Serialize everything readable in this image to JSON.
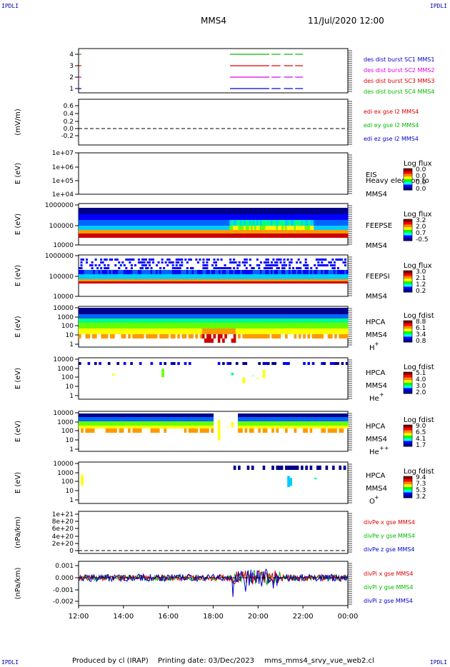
{
  "corners": {
    "tl": "IPDLI",
    "tr": "IPDLI",
    "bl": "IPDLI",
    "br": "IPDLI"
  },
  "header": {
    "mission": "MMS4",
    "datetime": "11/Jul/2020 12:00"
  },
  "footer": {
    "produced": "Produced by cl (IRAP)",
    "printing": "Printing date: 03/Dec/2023",
    "file": "mms_mms4_srvy_vue_web2.cl"
  },
  "colors": {
    "blue": "#0000cc",
    "red": "#dd0000",
    "green": "#00bb00",
    "magenta": "#dd00dd"
  },
  "chart_data": [
    {
      "type": "line",
      "x_axis": {
        "ticks": [
          "12:00",
          "14:00",
          "16:00",
          "18:00",
          "20:00",
          "22:00",
          "00:00"
        ],
        "range_hours": [
          12,
          24
        ]
      },
      "panels": [
        {
          "id": "burst",
          "type": "line",
          "yticks": [
            "4",
            "3",
            "2",
            "1"
          ],
          "ylim": [
            0.5,
            4.5
          ],
          "series": [
            {
              "name": "des dist burst SC1 MMS1",
              "color": "#0000cc",
              "y": 1
            },
            {
              "name": "des dist burst SC2 MMS2",
              "color": "#dd00dd",
              "y": 2
            },
            {
              "name": "des dist burst SC3 MMS3",
              "color": "#dd0000",
              "y": 3
            },
            {
              "name": "des dist burst SC4 MMS4",
              "color": "#00bb00",
              "y": 4
            }
          ],
          "segments_hours": [
            [
              18.75,
              20.5
            ],
            [
              20.6,
              21.0
            ],
            [
              21.15,
              21.55
            ],
            [
              21.65,
              22.0
            ]
          ],
          "stubs_hours": [
            12.0
          ]
        },
        {
          "id": "edi",
          "type": "line",
          "ylabel": "(mV/m)",
          "yticks": [
            "0.6",
            "0.4",
            "0.2",
            "0.0",
            "-0.2"
          ],
          "ylim": [
            -0.3,
            0.7
          ],
          "series": [
            {
              "name": "edi ex gse l2 MMS4",
              "color": "#dd0000"
            },
            {
              "name": "edi ey gse l2 MMS4",
              "color": "#00bb00"
            },
            {
              "name": "edi ez gse l2 MMS4",
              "color": "#0000cc"
            }
          ],
          "reference_line": 0.0
        },
        {
          "id": "eis",
          "type": "heatmap",
          "ylabel": "E (eV)",
          "yticks": [
            "1e+07",
            "1e+06",
            "1e+05",
            "1e+04"
          ],
          "right_labels": [
            "EIS",
            "Heavy electron to",
            "MMS4"
          ],
          "colorbar": {
            "title": "Log flux",
            "ticks": [
              "0.0",
              "0.0",
              "0.0",
              "0.0"
            ]
          }
        },
        {
          "id": "feepse",
          "type": "heatmap",
          "ylabel": "E (eV)",
          "yticks": [
            "1000000",
            "100000",
            "10000"
          ],
          "right_labels": [
            "FEEPSE",
            "MMS4"
          ],
          "colorbar": {
            "title": "Log flux",
            "ticks": [
              "3.2",
              "2.0",
              "0.7",
              "-0.5"
            ]
          }
        },
        {
          "id": "feepsi",
          "type": "heatmap",
          "ylabel": "E (eV)",
          "yticks": [
            "1000000",
            "100000",
            "10000"
          ],
          "right_labels": [
            "FEEPSI",
            "MMS4"
          ],
          "colorbar": {
            "title": "Log flux",
            "ticks": [
              "3.0",
              "2.1",
              "1.2",
              "0.2"
            ]
          }
        },
        {
          "id": "hpca_h",
          "type": "heatmap",
          "ylabel": "E (eV)",
          "yticks": [
            "10000",
            "1000",
            "100",
            "10",
            "1"
          ],
          "right_labels": [
            "HPCA",
            "MMS4",
            "H+"
          ],
          "colorbar": {
            "title": "Log fdist",
            "ticks": [
              "8.8",
              "6.1",
              "3.4",
              "0.8"
            ]
          }
        },
        {
          "id": "hpca_he",
          "type": "heatmap",
          "ylabel": "E (eV)",
          "yticks": [
            "10000",
            "1000",
            "100",
            "10",
            "1"
          ],
          "right_labels": [
            "HPCA",
            "MMS4",
            "He+"
          ],
          "colorbar": {
            "title": "Log fdist",
            "ticks": [
              "5.1",
              "4.0",
              "3.0",
              "2.0"
            ]
          }
        },
        {
          "id": "hpca_hepp",
          "type": "heatmap",
          "ylabel": "E (eV)",
          "yticks": [
            "10000",
            "1000",
            "100",
            "10",
            "1"
          ],
          "right_labels": [
            "HPCA",
            "MMS4",
            "He++"
          ],
          "colorbar": {
            "title": "Log fdist",
            "ticks": [
              "9.0",
              "6.5",
              "4.1",
              "1.7"
            ]
          }
        },
        {
          "id": "hpca_o",
          "type": "heatmap",
          "ylabel": "E (eV)",
          "yticks": [
            "10000",
            "1000",
            "100",
            "10",
            "1"
          ],
          "right_labels": [
            "HPCA",
            "MMS4",
            "O+"
          ],
          "colorbar": {
            "title": "Log fdist",
            "ticks": [
              "9.4",
              "7.3",
              "5.3",
              "3.2"
            ]
          }
        },
        {
          "id": "divpe",
          "type": "line",
          "ylabel": "(nPa/km)",
          "yticks": [
            "1e+21",
            "8e+20",
            "6e+20",
            "4e+20",
            "2e+20",
            "0"
          ],
          "series": [
            {
              "name": "divPe x gse MMS4",
              "color": "#dd0000"
            },
            {
              "name": "divPe y gse MMS4",
              "color": "#00bb00"
            },
            {
              "name": "divPe z gse MMS4",
              "color": "#0000cc"
            }
          ],
          "reference_line": 0
        },
        {
          "id": "divpi",
          "type": "line",
          "ylabel": "(nPa/km)",
          "yticks": [
            "0.001",
            "0.000",
            "-0.001",
            "-0.002"
          ],
          "ylim": [
            -0.0025,
            0.0012
          ],
          "series": [
            {
              "name": "divPi x gse MMS4",
              "color": "#dd0000"
            },
            {
              "name": "divPi y gse MMS4",
              "color": "#00bb00"
            },
            {
              "name": "divPi z gse MMS4",
              "color": "#0000cc"
            }
          ],
          "reference_line": 0.0
        }
      ]
    }
  ]
}
